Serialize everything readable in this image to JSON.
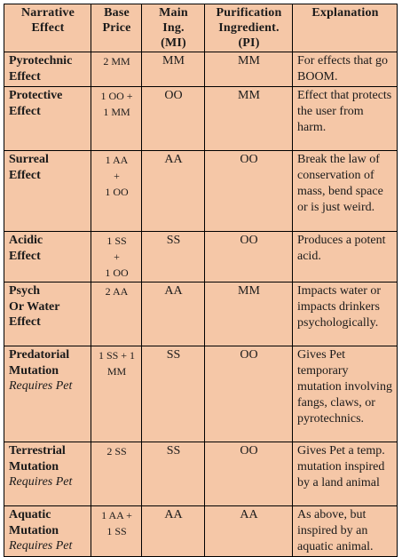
{
  "headers": {
    "effect": [
      "Narrative",
      "Effect"
    ],
    "price": [
      "Base",
      "Price"
    ],
    "main": [
      "Main",
      "Ing.",
      "(MI)"
    ],
    "purification": [
      "Purification",
      "Ingredient.",
      "(PI)"
    ],
    "explanation": [
      "Explanation"
    ]
  },
  "rows": [
    {
      "effect": [
        "Pyrotechnic",
        "Effect"
      ],
      "requires": "",
      "price": [
        "2 MM"
      ],
      "main": "MM",
      "purification": "MM",
      "explanation": "For effects that go BOOM."
    },
    {
      "effect": [
        "Protective",
        "Effect"
      ],
      "requires": "",
      "price": [
        "1 OO +",
        "1 MM"
      ],
      "main": "OO",
      "purification": "MM",
      "explanation": "Effect that protects the user from harm."
    },
    {
      "effect": [
        "Surreal",
        "Effect"
      ],
      "requires": "",
      "price": [
        "1 AA",
        "+",
        "1 OO"
      ],
      "main": "AA",
      "purification": "OO",
      "explanation": "Break the law of conservation of mass, bend space or is just weird."
    },
    {
      "effect": [
        "Acidic",
        "Effect"
      ],
      "requires": "",
      "price": [
        "1 SS",
        "+",
        "1 OO"
      ],
      "main": "SS",
      "purification": "OO",
      "explanation": "Produces a potent acid."
    },
    {
      "effect": [
        "Psych",
        "Or Water",
        "Effect"
      ],
      "requires": "",
      "price": [
        "2 AA"
      ],
      "main": "AA",
      "purification": "MM",
      "explanation": "Impacts water or impacts drinkers psychologically."
    },
    {
      "effect": [
        "Predatorial",
        "Mutation"
      ],
      "requires": "Requires Pet",
      "price": [
        "1 SS + 1",
        "MM"
      ],
      "main": "SS",
      "purification": "OO",
      "explanation": "Gives Pet temporary mutation involving fangs, claws, or pyrotechnics."
    },
    {
      "effect": [
        "Terrestrial",
        "Mutation"
      ],
      "requires": "Requires Pet",
      "price": [
        "2 SS"
      ],
      "main": "SS",
      "purification": "OO",
      "explanation": "Gives Pet a temp. mutation inspired by a land animal"
    },
    {
      "effect": [
        "Aquatic",
        "Mutation"
      ],
      "requires": "Requires Pet",
      "price": [
        "1 AA +",
        "1 SS"
      ],
      "main": "AA",
      "purification": "AA",
      "explanation": "As above, but inspired by an aquatic animal."
    }
  ]
}
